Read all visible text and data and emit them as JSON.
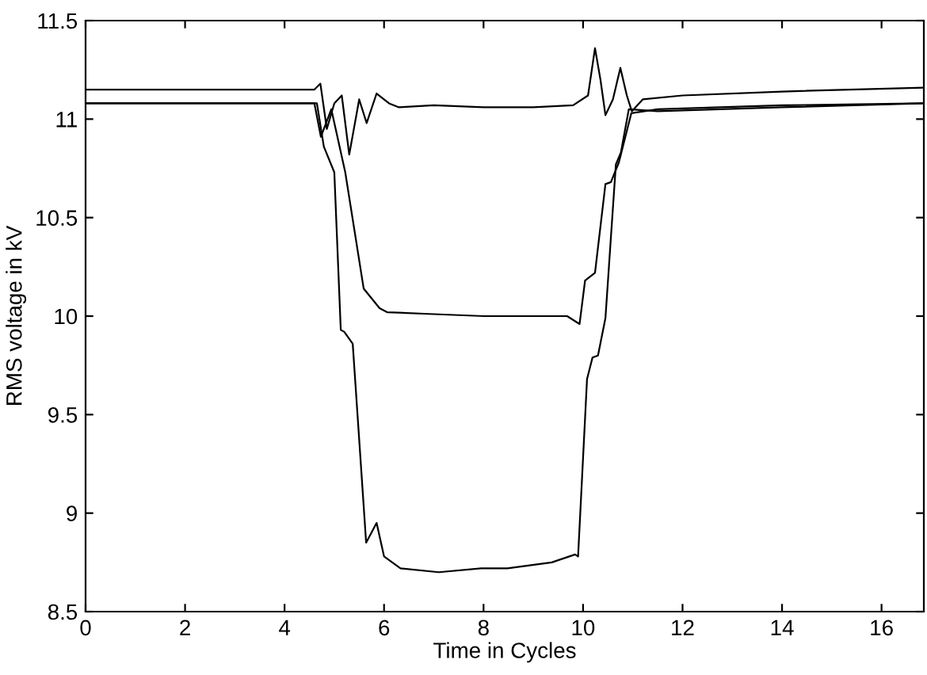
{
  "chart_data": {
    "type": "line",
    "xlabel": "Time in Cycles",
    "ylabel": "RMS voltage in kV",
    "xlim": [
      0,
      16.85
    ],
    "ylim": [
      8.5,
      11.5
    ],
    "xticks": [
      0,
      2,
      4,
      6,
      8,
      10,
      12,
      14,
      16
    ],
    "yticks": [
      8.5,
      9,
      9.5,
      10,
      10.5,
      11,
      11.5
    ],
    "grid": false,
    "marker": "none",
    "line_style": "solid",
    "series": [
      {
        "color": "#000000",
        "x": [
          0,
          4.6,
          4.72,
          4.85,
          5.0,
          5.15,
          5.3,
          5.5,
          5.65,
          5.85,
          6.1,
          6.3,
          7,
          8,
          9,
          9.8,
          10.1,
          10.24,
          10.35,
          10.45,
          10.6,
          10.75,
          10.88,
          10.98,
          11.2,
          12,
          14,
          16.85
        ],
        "values": [
          11.15,
          11.15,
          11.18,
          10.95,
          11.08,
          11.12,
          10.82,
          11.1,
          10.98,
          11.13,
          11.08,
          11.06,
          11.07,
          11.06,
          11.06,
          11.07,
          11.12,
          11.36,
          11.2,
          11.02,
          11.1,
          11.26,
          11.12,
          11.04,
          11.1,
          11.12,
          11.14,
          11.16
        ]
      },
      {
        "color": "#000000",
        "x": [
          0,
          4.6,
          4.73,
          4.94,
          5.22,
          5.59,
          5.91,
          6.06,
          7,
          8,
          9,
          9.68,
          9.93,
          10.04,
          10.24,
          10.45,
          10.56,
          10.72,
          10.88,
          10.97,
          11.5,
          14,
          16.85
        ],
        "values": [
          11.08,
          11.08,
          10.91,
          11.05,
          10.73,
          10.14,
          10.04,
          10.02,
          10.01,
          10.0,
          10.0,
          10.0,
          9.96,
          10.18,
          10.22,
          10.67,
          10.68,
          10.78,
          10.94,
          11.03,
          11.05,
          11.07,
          11.08
        ]
      },
      {
        "color": "#000000",
        "x": [
          0,
          4.65,
          4.79,
          5.0,
          5.13,
          5.2,
          5.37,
          5.64,
          5.85,
          6.0,
          6.33,
          7.1,
          7.95,
          8.48,
          9.37,
          9.84,
          9.9,
          10.08,
          10.19,
          10.3,
          10.45,
          10.56,
          10.66,
          10.76,
          10.92,
          11.5,
          14,
          16.85
        ],
        "values": [
          11.08,
          11.08,
          10.86,
          10.73,
          9.93,
          9.92,
          9.86,
          8.85,
          8.95,
          8.78,
          8.72,
          8.7,
          8.72,
          8.72,
          8.75,
          8.79,
          8.78,
          9.68,
          9.79,
          9.8,
          9.99,
          10.4,
          10.77,
          10.83,
          11.05,
          11.04,
          11.06,
          11.08
        ]
      }
    ]
  }
}
